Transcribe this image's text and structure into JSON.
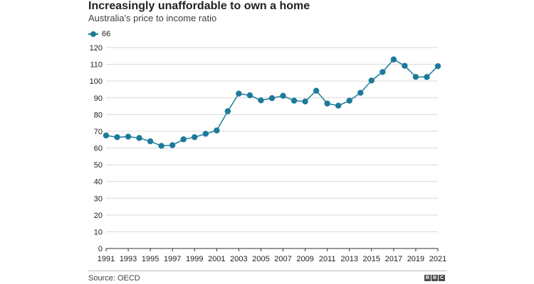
{
  "chart_data": {
    "type": "line",
    "title": "Increasingly unaffordable to own a home",
    "subtitle": "Australia's price to income ratio",
    "legend": {
      "label": "66",
      "placement": "top-left"
    },
    "x": [
      1991,
      1992,
      1993,
      1994,
      1995,
      1996,
      1997,
      1998,
      1999,
      2000,
      2001,
      2002,
      2003,
      2004,
      2005,
      2006,
      2007,
      2008,
      2009,
      2010,
      2011,
      2012,
      2013,
      2014,
      2015,
      2016,
      2017,
      2018,
      2019,
      2020,
      2021
    ],
    "series": [
      {
        "name": "66",
        "values": [
          67.5,
          66.5,
          66.8,
          66,
          64,
          61.3,
          61.7,
          65.2,
          66.5,
          68.5,
          70.5,
          82,
          92.5,
          91.5,
          88.5,
          89.8,
          91.2,
          88.3,
          87.8,
          94.2,
          86.6,
          85.3,
          88.3,
          93,
          100.3,
          105.4,
          112.9,
          109.1,
          102.5,
          102.4,
          108.9
        ]
      }
    ],
    "x_ticks": [
      "1991",
      "1993",
      "1995",
      "1997",
      "1999",
      "2001",
      "2003",
      "2005",
      "2007",
      "2009",
      "2011",
      "2013",
      "2015",
      "2017",
      "2019",
      "2021"
    ],
    "y_ticks": [
      "0",
      "10",
      "20",
      "30",
      "40",
      "50",
      "60",
      "70",
      "80",
      "90",
      "100",
      "110",
      "120"
    ],
    "xlim": [
      1991,
      2021
    ],
    "ylim": [
      0,
      120
    ],
    "grid": "horizontal",
    "xlabel": "",
    "ylabel": "",
    "colors": {
      "series": "#1d7a9a",
      "grid": "#d9d9d9",
      "axis": "#333333"
    }
  },
  "source": "Source: OECD",
  "logo": "BBC"
}
